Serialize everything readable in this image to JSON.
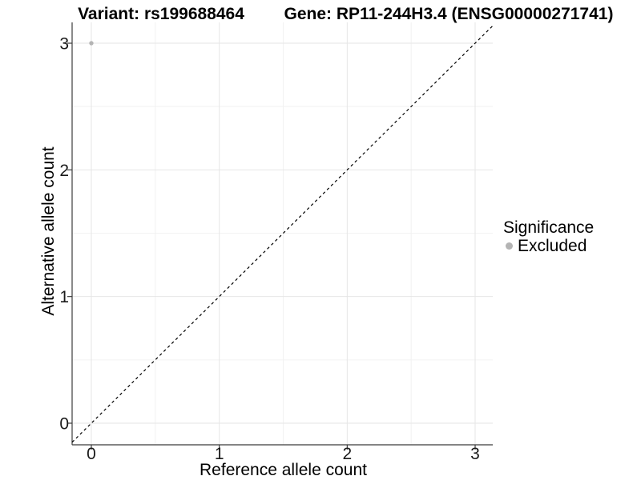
{
  "chart_data": {
    "type": "scatter",
    "titles": [
      "Variant: rs199688464",
      "Gene: RP11-244H3.4 (ENSG00000271741)"
    ],
    "xlabel": "Reference allele count",
    "ylabel": "Alternative allele count",
    "x_ticks": [
      0,
      1,
      2,
      3
    ],
    "y_ticks": [
      0,
      1,
      2,
      3
    ],
    "xlim": [
      -0.15,
      3.15
    ],
    "ylim": [
      -0.17,
      3.17
    ],
    "grid": {
      "major": true,
      "minor": true
    },
    "reference_line": {
      "equation": "y = x",
      "style": "dashed",
      "color": "#000000"
    },
    "points": [
      {
        "x": 0,
        "y": 3,
        "significance": "Excluded",
        "color": "#b4b4b4"
      }
    ],
    "legend": {
      "title": "Significance",
      "position": "right",
      "entries": [
        {
          "label": "Excluded",
          "color": "#b4b4b4"
        }
      ]
    }
  },
  "colors": {
    "background": "#ffffff",
    "grid_major": "#e6e6e6",
    "grid_minor": "#f2f2f2",
    "axis_line": "#3c3c3c",
    "tick_text": "#1a1a1a",
    "point": "#b4b4b4"
  }
}
